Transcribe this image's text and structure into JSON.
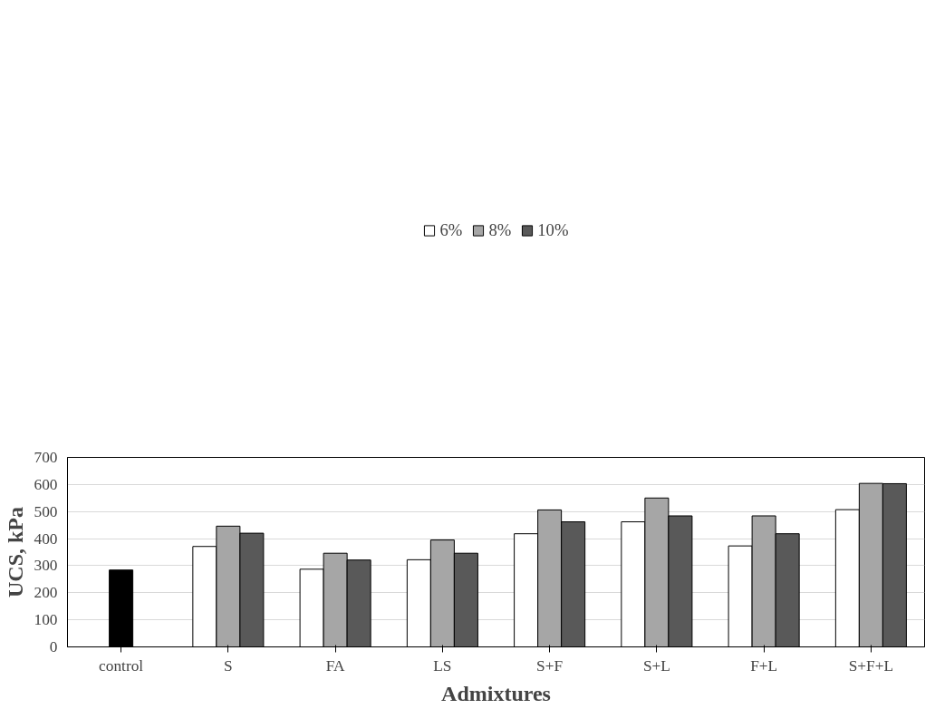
{
  "chart_data": {
    "type": "bar",
    "xlabel": "Admixtures",
    "ylabel": "UCS, kPa",
    "categories": [
      "control",
      "S",
      "FA",
      "LS",
      "S+F",
      "S+L",
      "F+L",
      "S+F+L"
    ],
    "series": [
      {
        "name": "6%",
        "color": "#ffffff",
        "values": [
          null,
          371,
          287,
          322,
          418,
          462,
          373,
          507
        ]
      },
      {
        "name": "8%",
        "color": "#a6a6a6",
        "colors": [
          "#000000",
          "#a6a6a6",
          "#a6a6a6",
          "#a6a6a6",
          "#a6a6a6",
          "#a6a6a6",
          "#a6a6a6",
          "#a6a6a6"
        ],
        "values": [
          284,
          446,
          346,
          395,
          506,
          550,
          484,
          604
        ]
      },
      {
        "name": "10%",
        "color": "#595959",
        "values": [
          null,
          420,
          321,
          346,
          462,
          484,
          418,
          603
        ]
      }
    ],
    "ylim": [
      0,
      700
    ],
    "yticks": [
      0,
      100,
      200,
      300,
      400,
      500,
      600,
      700
    ],
    "grid": "y",
    "legend": "top"
  }
}
